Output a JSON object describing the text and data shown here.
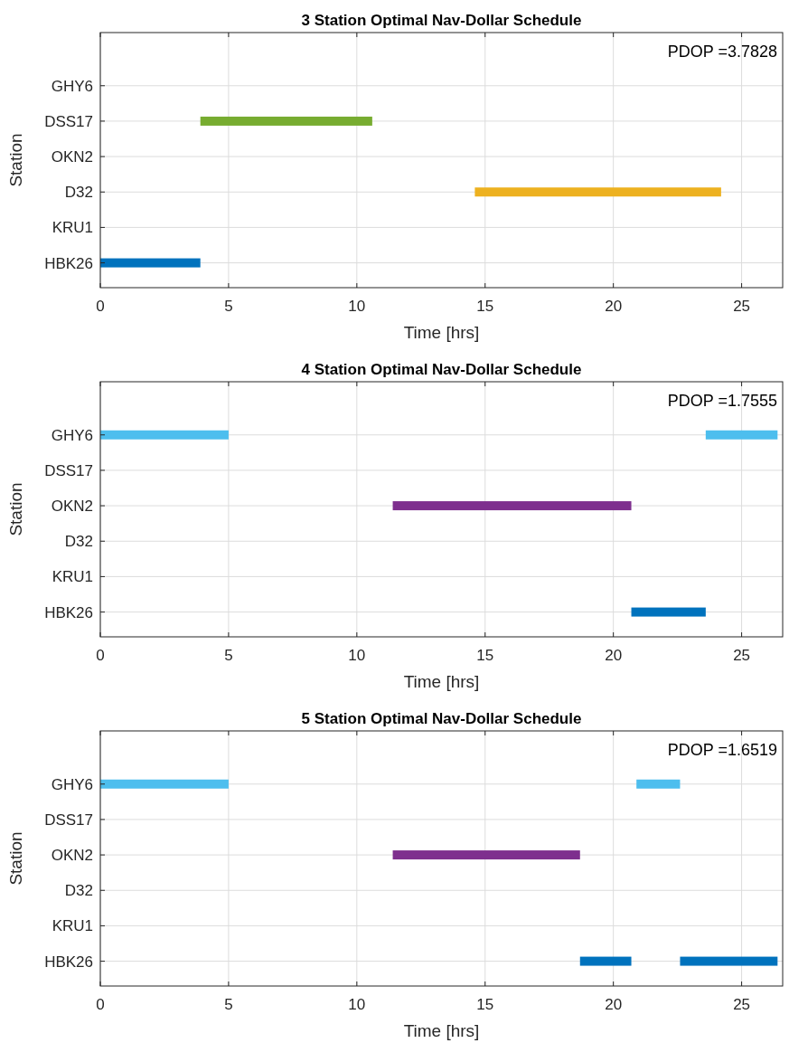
{
  "chart_data": [
    {
      "type": "bar",
      "orientation": "horizontal",
      "title": "3 Station Optimal Nav-Dollar Schedule",
      "xlabel": "Time [hrs]",
      "ylabel": "Station",
      "categories": [
        "GHY6",
        "DSS17",
        "OKN2",
        "D32",
        "KRU1",
        "HBK26"
      ],
      "xlim": [
        0,
        26.6
      ],
      "xticks": [
        0,
        5,
        10,
        15,
        20,
        25
      ],
      "grid": true,
      "annotations": [
        "PDOP =3.7828"
      ],
      "series": [
        {
          "color": "#0072bd",
          "base": [
            null,
            null,
            null,
            null,
            null,
            0
          ],
          "values": [
            null,
            null,
            null,
            null,
            null,
            3.9
          ]
        },
        {
          "color": "#77ac30",
          "base": [
            null,
            3.9,
            null,
            null,
            null,
            null
          ],
          "values": [
            null,
            6.7,
            null,
            null,
            null,
            null
          ]
        },
        {
          "color": "#edb120",
          "base": [
            null,
            null,
            null,
            14.6,
            null,
            null
          ],
          "values": [
            null,
            null,
            null,
            9.6,
            null,
            null
          ]
        }
      ]
    },
    {
      "type": "bar",
      "orientation": "horizontal",
      "title": "4 Station Optimal Nav-Dollar Schedule",
      "xlabel": "Time [hrs]",
      "ylabel": "Station",
      "categories": [
        "GHY6",
        "DSS17",
        "OKN2",
        "D32",
        "KRU1",
        "HBK26"
      ],
      "xlim": [
        0,
        26.6
      ],
      "xticks": [
        0,
        5,
        10,
        15,
        20,
        25
      ],
      "grid": true,
      "annotations": [
        "PDOP =1.7555"
      ],
      "series": [
        {
          "color": "#4dbeee",
          "base": [
            0,
            null,
            null,
            null,
            null,
            null
          ],
          "values": [
            5.0,
            null,
            null,
            null,
            null,
            null
          ]
        },
        {
          "color": "#4dbeee",
          "base": [
            23.6,
            null,
            null,
            null,
            null,
            null
          ],
          "values": [
            2.8,
            null,
            null,
            null,
            null,
            null
          ]
        },
        {
          "color": "#7e2f8e",
          "base": [
            null,
            null,
            11.4,
            null,
            null,
            null
          ],
          "values": [
            null,
            null,
            9.3,
            null,
            null,
            null
          ]
        },
        {
          "color": "#0072bd",
          "base": [
            null,
            null,
            null,
            null,
            null,
            20.7
          ],
          "values": [
            null,
            null,
            null,
            null,
            null,
            2.9
          ]
        }
      ]
    },
    {
      "type": "bar",
      "orientation": "horizontal",
      "title": "5 Station Optimal Nav-Dollar Schedule",
      "xlabel": "Time [hrs]",
      "ylabel": "Station",
      "categories": [
        "GHY6",
        "DSS17",
        "OKN2",
        "D32",
        "KRU1",
        "HBK26"
      ],
      "xlim": [
        0,
        26.6
      ],
      "xticks": [
        0,
        5,
        10,
        15,
        20,
        25
      ],
      "grid": true,
      "annotations": [
        "PDOP =1.6519"
      ],
      "series": [
        {
          "color": "#4dbeee",
          "base": [
            0,
            null,
            null,
            null,
            null,
            null
          ],
          "values": [
            5.0,
            null,
            null,
            null,
            null,
            null
          ]
        },
        {
          "color": "#4dbeee",
          "base": [
            20.9,
            null,
            null,
            null,
            null,
            null
          ],
          "values": [
            1.7,
            null,
            null,
            null,
            null,
            null
          ]
        },
        {
          "color": "#7e2f8e",
          "base": [
            null,
            null,
            11.4,
            null,
            null,
            null
          ],
          "values": [
            null,
            null,
            7.3,
            null,
            null,
            null
          ]
        },
        {
          "color": "#0072bd",
          "base": [
            null,
            null,
            null,
            null,
            null,
            18.7
          ],
          "values": [
            null,
            null,
            null,
            null,
            null,
            2.0
          ]
        },
        {
          "color": "#0072bd",
          "base": [
            null,
            null,
            null,
            null,
            null,
            22.6
          ],
          "values": [
            null,
            null,
            null,
            null,
            null,
            3.8
          ]
        }
      ]
    }
  ]
}
